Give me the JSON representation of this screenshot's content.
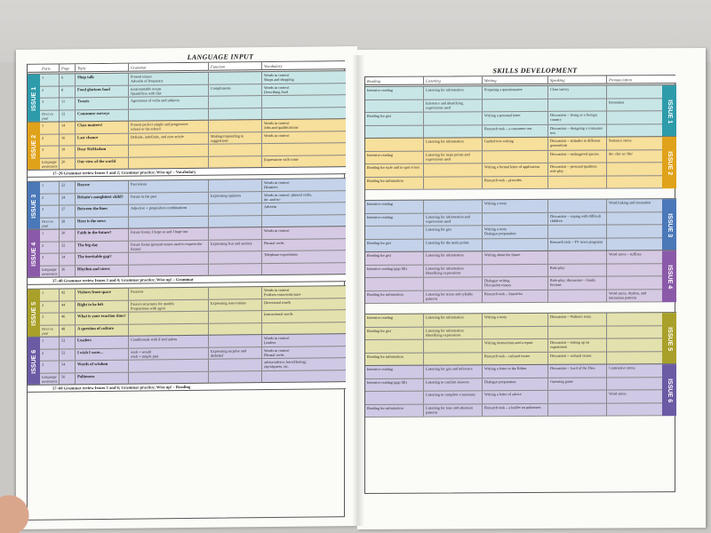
{
  "left": {
    "title": "LANGUAGE INPUT",
    "headers": [
      "Parts",
      "Page",
      "Topic",
      "Grammar",
      "Function",
      "Vocabulary"
    ],
    "issues": [
      {
        "tab": "ISSUE 1",
        "color": "#2e9bab",
        "bg": "#c9e6e7",
        "rows": [
          [
            "1",
            "6",
            "Shop talk",
            "Present tenses\nAdverbs of frequency",
            "",
            "Words in context\nShops and shopping"
          ],
          [
            "2",
            "8",
            "Food glorious food",
            "(un)countable nouns\nQuantifiers with like",
            "Compliments",
            "Words in context\nDescribing food"
          ],
          [
            "3",
            "11",
            "Tweets",
            "Agreement of verbs and subjects",
            "",
            ""
          ],
          [
            "Over to you!",
            "12",
            "Consumer surveys",
            "",
            "",
            ""
          ]
        ]
      },
      {
        "tab": "ISSUE 2",
        "color": "#e0a21a",
        "bg": "#f7df9c",
        "rows": [
          [
            "1",
            "14",
            "Class matters!",
            "Present perfect simple and progressive\nschool or the school",
            "",
            "Words in context\nJobs and qualifications"
          ],
          [
            "2",
            "16",
            "Last chance",
            "Definite, indefinite, and zero article",
            "Making/responding to suggestions",
            "Words in context"
          ],
          [
            "3",
            "19",
            "Dear SloMadam",
            "",
            "",
            ""
          ],
          [
            "Language awareness",
            "20",
            "Our view of the world",
            "",
            "",
            "Expressions with come"
          ]
        ]
      }
    ],
    "review1": "17–20 Grammar review Issues 1 and 2; Grammar practice; Wise up! – Vocabulary",
    "issues2": [
      {
        "tab": "ISSUE 3",
        "color": "#4a78b8",
        "bg": "#c4d3ea",
        "rows": [
          [
            "1",
            "22",
            "Rescue",
            "Past tenses",
            "",
            "Words in context\nDisasters"
          ],
          [
            "2",
            "24",
            "Britain's naughtiest child?",
            "Future in the past",
            "Expressing opinions",
            "Words in context: phrasal verbs, do- and so-"
          ],
          [
            "3",
            "27",
            "Between the lines",
            "Adjective + preposition combinations",
            "",
            "Adverbs"
          ],
          [
            "Over to you!",
            "28",
            "Here is the news",
            "",
            "",
            ""
          ]
        ]
      },
      {
        "tab": "ISSUE 4",
        "color": "#8a5aa8",
        "bg": "#d6c9e3",
        "rows": [
          [
            "1",
            "30",
            "Faith in the future?",
            "Future forms; I hope so and I hope not",
            "",
            "Words in context"
          ],
          [
            "2",
            "32",
            "The big day",
            "Future forms (present tenses used to express the future)",
            "Expressing fear and anxiety",
            "Phrasal verbs"
          ],
          [
            "3",
            "34",
            "The inevitable gap?",
            "",
            "",
            "Telephone expressions"
          ],
          [
            "Language awareness",
            "36",
            "Rhythm and stress",
            "",
            "",
            ""
          ]
        ]
      }
    ],
    "review2": "37–40 Grammar review Issues 3 and 4; Grammar practice; Wise up! – Grammar",
    "issues3": [
      {
        "tab": "ISSUE 5",
        "color": "#a9a02a",
        "bg": "#e3e1ad",
        "rows": [
          [
            "1",
            "42",
            "Visitors from space",
            "Passives",
            "",
            "Words in context\nProfixes extra/semi/auto-"
          ],
          [
            "2",
            "44",
            "Right to be left",
            "Passive structures for models\nPrepositions with agree",
            "Expressing reservations",
            "Directional words"
          ],
          [
            "3",
            "46",
            "What is your reaction time?",
            "",
            "",
            "Instructional words"
          ],
          [
            "Over to you!",
            "48",
            "A question of culture",
            "",
            "",
            ""
          ]
        ]
      },
      {
        "tab": "ISSUE 6",
        "color": "#6b5aa4",
        "bg": "#cfc9e5",
        "rows": [
          [
            "1",
            "52",
            "Leaders",
            "Conditionals with if and unless",
            "",
            "Words in context\nLeaders"
          ],
          [
            "2",
            "52",
            "I wish I were...",
            "wish + would\nwish + simple past",
            "Expressing surprise and disbelief",
            "Words in context\nPhrasal verbs"
          ],
          [
            "3",
            "54",
            "Words of wisdom",
            "",
            "",
            "advise/advice; bored/boring; shy/shyness, etc."
          ],
          [
            "Language awareness",
            "56",
            "Politeness",
            "",
            "",
            ""
          ]
        ]
      }
    ],
    "review3": "57–60 Grammar review Issues 5 and 6; Grammar practice; Wise up! – Reading"
  },
  "right": {
    "title": "SKILLS DEVELOPMENT",
    "headers": [
      "Reading",
      "Listening",
      "Writing",
      "Speaking",
      "Pronunciation"
    ],
    "issues": [
      {
        "tab": "ISSUE 1",
        "color": "#2e9bab",
        "bg": "#c9e6e7",
        "rows": [
          [
            "Intensive reading",
            "Listening for information",
            "Preparing a questionnaire",
            "Class survey",
            ""
          ],
          [
            "",
            "Inference and identifying expressions used",
            "",
            "",
            "Intonation"
          ],
          [
            "Reading for gist",
            "",
            "Writing a personal letter",
            "Discussion – living in a foreign country",
            ""
          ],
          [
            "",
            "",
            "Research task – a consumer test",
            "Discussion – designing a consumer test",
            ""
          ]
        ]
      },
      {
        "tab": "ISSUE 2",
        "color": "#e0a21a",
        "bg": "#f7df9c",
        "rows": [
          [
            "",
            "Listening for information",
            "Guided text writing",
            "Discussion – attitudes to different generations",
            "Sentence stress"
          ],
          [
            "Intensive reading",
            "Listening for main points and expressions used",
            "",
            "Discussion – endangered species",
            "the -the/ or /the/"
          ],
          [
            "Reading for style and to spot errors",
            "",
            "Writing a formal letter of application",
            "Discussion – personal qualities; role-play",
            ""
          ],
          [
            "Reading for information",
            "",
            "Research task – proverbs",
            "",
            ""
          ]
        ]
      },
      {
        "tab": "ISSUE 3",
        "color": "#4a78b8",
        "bg": "#c4d3ea",
        "rows": [
          [
            "Intensive reading",
            "",
            "Writing a story",
            "",
            "Word linking and intonation"
          ],
          [
            "Intensive reading",
            "Listening for information and expressions used",
            "",
            "Discussion – coping with difficult children",
            ""
          ],
          [
            "",
            "Listening for gist",
            "Writing a story\nDialogue preparation",
            "",
            ""
          ],
          [
            "Reading for gist",
            "Listening for the main points",
            "",
            "Research task – TV news programs",
            ""
          ]
        ]
      },
      {
        "tab": "ISSUE 4",
        "color": "#8a5aa8",
        "bg": "#d6c9e3",
        "rows": [
          [
            "Reading for gist",
            "Listening for information",
            "Writing about the future",
            "",
            "Word stress – suffixes"
          ],
          [
            "Intensive reading (gap fill)",
            "Listening for information\nIdentifying expressions",
            "",
            "Role-play",
            ""
          ],
          [
            "",
            "",
            "Dialogue writing\nDiscussion essays",
            "Role-play; discussion – family fictions",
            ""
          ],
          [
            "Reading for information",
            "Listening for stress and syllable patterns",
            "Research task – limericks",
            "",
            "Word stress, rhythm, and intonation patterns"
          ]
        ]
      },
      {
        "tab": "ISSUE 5",
        "color": "#a9a02a",
        "bg": "#e3e1ad",
        "rows": [
          [
            "Intensive reading",
            "Listening for information",
            "Writing a story",
            "Discussion – Walton's story",
            ""
          ],
          [
            "Reading for gist",
            "Listening for information\nIdentifying expressions",
            "",
            "",
            ""
          ],
          [
            "",
            "",
            "Writing instructions and a report",
            "Discussion – setting up an experiment",
            ""
          ],
          [
            "Reading for information",
            "",
            "Research task – cultural issues",
            "Discussion – cultural issues",
            ""
          ]
        ]
      },
      {
        "tab": "ISSUE 6",
        "color": "#6b5aa4",
        "bg": "#cfc9e5",
        "rows": [
          [
            "Intensive reading",
            "Listening for gist and inference",
            "Writing a letter to the Editor",
            "Discussion – Lord of the Flies",
            "Contrastive stress"
          ],
          [
            "Intensive reading (gap fill)",
            "Listening to confirm answers",
            "Dialogue preparation",
            "Guessing game",
            ""
          ],
          [
            "",
            "Listening to complete a summary",
            "Writing a letter of advice",
            "",
            "Word stress"
          ],
          [
            "Reading for information",
            "Listening for tone and attention patterns",
            "Research task – a leaflet on politeness",
            "",
            ""
          ]
        ]
      }
    ]
  }
}
